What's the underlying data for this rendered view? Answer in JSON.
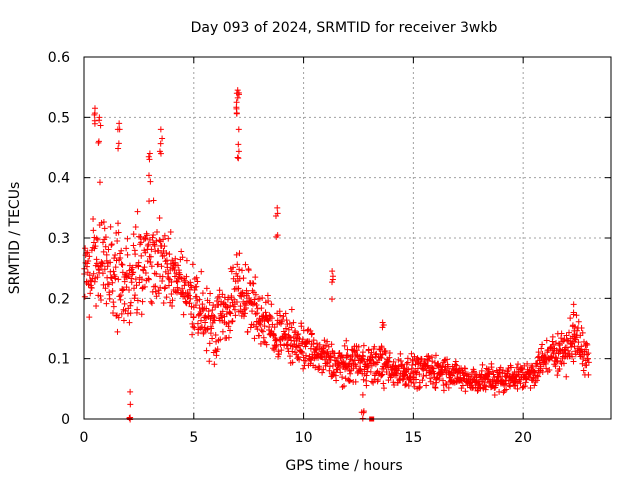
{
  "chart_data": {
    "type": "scatter",
    "title": "Day 093 of 2024, SRMTID for receiver 3wkb",
    "xlabel": "GPS time / hours",
    "ylabel": "SRMTID / TECUs",
    "xlim": [
      0,
      24
    ],
    "ylim": [
      0,
      0.6
    ],
    "x_ticks": [
      "0",
      "5",
      "10",
      "15",
      "20"
    ],
    "y_ticks": [
      "0",
      "0.1",
      "0.2",
      "0.3",
      "0.4",
      "0.5",
      "0.6"
    ],
    "grid": true,
    "marker": "+",
    "color": "#ff0000",
    "series": [
      {
        "name": "SRMTID",
        "envelope_hours": [
          0,
          0.25,
          0.5,
          0.75,
          1,
          1.5,
          2,
          2.5,
          3,
          3.5,
          4,
          4.5,
          5,
          5.5,
          6,
          6.5,
          7,
          7.5,
          8,
          8.5,
          9,
          9.5,
          10,
          10.5,
          11,
          11.5,
          12,
          12.5,
          13,
          13.5,
          14,
          14.5,
          15,
          15.5,
          16,
          16.5,
          17,
          17.5,
          18,
          18.5,
          19,
          19.5,
          20,
          20.5,
          21,
          21.5,
          22,
          22.5,
          23
        ],
        "envelope_median": [
          0.25,
          0.24,
          0.26,
          0.28,
          0.25,
          0.24,
          0.23,
          0.25,
          0.27,
          0.26,
          0.24,
          0.22,
          0.19,
          0.17,
          0.16,
          0.18,
          0.21,
          0.2,
          0.17,
          0.15,
          0.14,
          0.13,
          0.12,
          0.11,
          0.1,
          0.09,
          0.09,
          0.1,
          0.09,
          0.09,
          0.08,
          0.08,
          0.08,
          0.08,
          0.08,
          0.08,
          0.07,
          0.065,
          0.065,
          0.065,
          0.065,
          0.07,
          0.07,
          0.08,
          0.1,
          0.11,
          0.12,
          0.13,
          0.1
        ],
        "envelope_spread": [
          0.05,
          0.06,
          0.08,
          0.09,
          0.07,
          0.08,
          0.08,
          0.07,
          0.07,
          0.07,
          0.06,
          0.05,
          0.05,
          0.05,
          0.05,
          0.05,
          0.06,
          0.05,
          0.05,
          0.04,
          0.04,
          0.035,
          0.035,
          0.03,
          0.03,
          0.03,
          0.03,
          0.03,
          0.03,
          0.03,
          0.025,
          0.025,
          0.025,
          0.025,
          0.025,
          0.025,
          0.02,
          0.02,
          0.02,
          0.02,
          0.02,
          0.02,
          0.02,
          0.025,
          0.025,
          0.03,
          0.035,
          0.035,
          0.03
        ],
        "peaks": [
          {
            "x": 0.5,
            "y": 0.515
          },
          {
            "x": 0.7,
            "y": 0.5
          },
          {
            "x": 1.6,
            "y": 0.49
          },
          {
            "x": 3.5,
            "y": 0.48
          },
          {
            "x": 3.0,
            "y": 0.44
          },
          {
            "x": 7.0,
            "y": 0.545
          },
          {
            "x": 6.95,
            "y": 0.525
          },
          {
            "x": 7.05,
            "y": 0.48
          },
          {
            "x": 8.8,
            "y": 0.35
          },
          {
            "x": 11.3,
            "y": 0.245
          },
          {
            "x": 13.6,
            "y": 0.16
          },
          {
            "x": 22.3,
            "y": 0.19
          },
          {
            "x": 2.1,
            "y": 0.045
          },
          {
            "x": 12.7,
            "y": 0.04
          }
        ],
        "n_points": 1600
      }
    ],
    "annotations": [
      {
        "x": 13.1,
        "y": 0.0,
        "marker": "square"
      }
    ]
  }
}
